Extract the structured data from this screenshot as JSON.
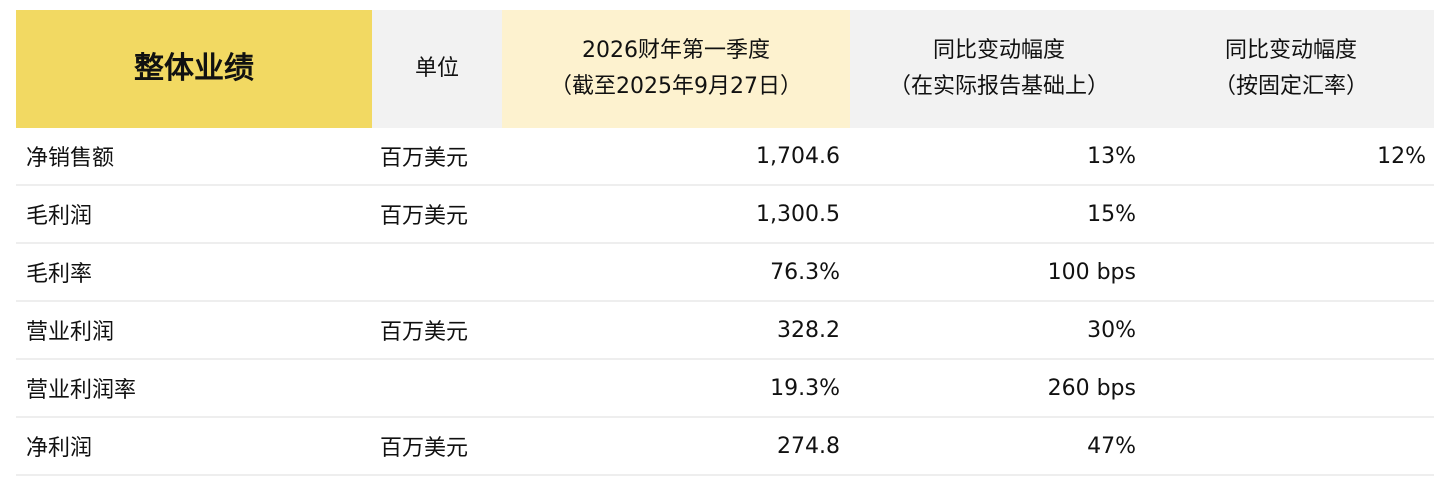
{
  "header": {
    "title": "整体业绩",
    "unit": "单位",
    "q1_line1": "2026财年第一季度",
    "q1_line2": "（截至2025年9月27日）",
    "yoy_reported_line1": "同比变动幅度",
    "yoy_reported_line2": "（在实际报告基础上）",
    "yoy_cc_line1": "同比变动幅度",
    "yoy_cc_line2": "（按固定汇率）"
  },
  "colors": {
    "title_bg": "#F2D962",
    "q1_bg": "#FDF2CF",
    "header_bg": "#F2F2F2"
  },
  "rows": [
    {
      "metric": "净销售额",
      "unit": "百万美元",
      "value": "1,704.6",
      "yoy": "13%",
      "yoy_cc": "12%"
    },
    {
      "metric": "毛利润",
      "unit": "百万美元",
      "value": "1,300.5",
      "yoy": "15%",
      "yoy_cc": ""
    },
    {
      "metric": "毛利率",
      "unit": "",
      "value": "76.3%",
      "yoy": "100 bps",
      "yoy_cc": ""
    },
    {
      "metric": "营业利润",
      "unit": "百万美元",
      "value": "328.2",
      "yoy": "30%",
      "yoy_cc": ""
    },
    {
      "metric": "营业利润率",
      "unit": "",
      "value": "19.3%",
      "yoy": "260 bps",
      "yoy_cc": ""
    },
    {
      "metric": "净利润",
      "unit": "百万美元",
      "value": "274.8",
      "yoy": "47%",
      "yoy_cc": ""
    }
  ]
}
